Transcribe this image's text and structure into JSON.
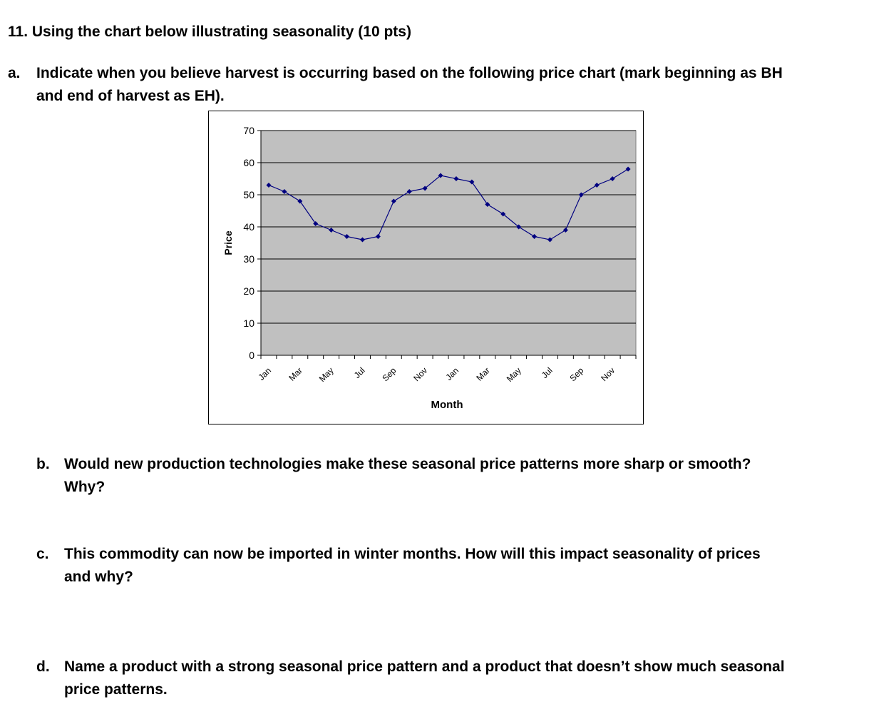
{
  "question_title": "11. Using the chart below illustrating seasonality (10 pts)",
  "parts": [
    {
      "letter": "a.",
      "text": "Indicate when you believe harvest is occurring based on the following price chart (mark beginning as BH",
      "text2": "and end of harvest as EH)."
    },
    {
      "letter": "b.",
      "text": "Would new production technologies make these seasonal price patterns more sharp or smooth?",
      "text2": "Why?"
    },
    {
      "letter": "c.",
      "text": "This commodity can now be imported in winter months.  How will this impact seasonality of prices",
      "text2": "and why?"
    },
    {
      "letter": "d.",
      "text": "Name a product with a strong seasonal price pattern and a product that doesn’t show much seasonal",
      "text2": "price patterns."
    }
  ],
  "chart_data": {
    "type": "line",
    "xlabel": "Month",
    "ylabel": "Price",
    "ylim": [
      0,
      70
    ],
    "yticks": [
      0,
      10,
      20,
      30,
      40,
      50,
      60,
      70
    ],
    "x_tick_labels": [
      "Jan",
      "Mar",
      "May",
      "Jul",
      "Sep",
      "Nov",
      "Jan",
      "Mar",
      "May",
      "Jul",
      "Sep",
      "Nov"
    ],
    "values": [
      53,
      51,
      48,
      41,
      39,
      37,
      36,
      37,
      48,
      51,
      52,
      56,
      55,
      54,
      47,
      44,
      40,
      37,
      36,
      39,
      50,
      53,
      55,
      58
    ],
    "grid": true,
    "plot_background": "#c0c0c0",
    "line_color": "#000080",
    "marker": "diamond"
  }
}
